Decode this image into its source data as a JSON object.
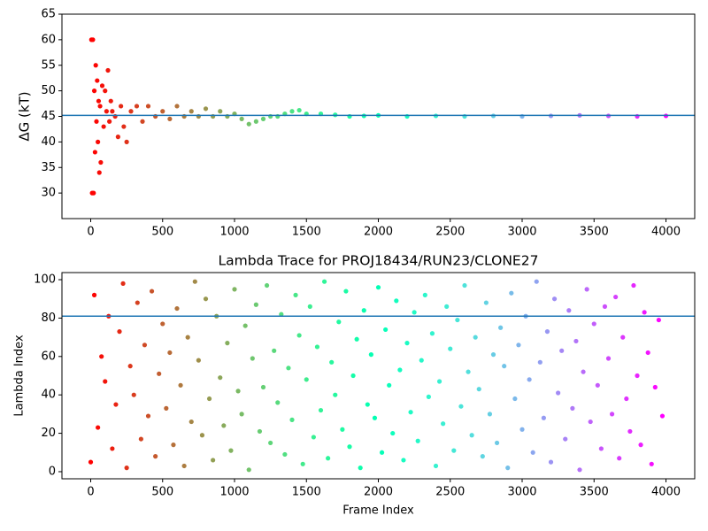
{
  "chart_data": [
    {
      "type": "scatter",
      "ylabel": "ΔG (kT)",
      "colormap": "rainbow_r",
      "hline": 45.2,
      "hline_color": "#1f77b4",
      "xlim": [
        -200,
        4200
      ],
      "ylim": [
        25,
        65
      ],
      "xticks": [
        0,
        500,
        1000,
        1500,
        2000,
        2500,
        3000,
        3500,
        4000
      ],
      "yticks": [
        30,
        35,
        40,
        45,
        50,
        55,
        60,
        65
      ],
      "x": [
        5,
        10,
        15,
        20,
        25,
        30,
        35,
        40,
        45,
        50,
        55,
        60,
        65,
        70,
        80,
        90,
        100,
        110,
        120,
        130,
        140,
        150,
        170,
        190,
        210,
        230,
        250,
        280,
        320,
        360,
        400,
        450,
        500,
        550,
        600,
        650,
        700,
        750,
        800,
        850,
        900,
        950,
        1000,
        1050,
        1100,
        1150,
        1200,
        1250,
        1300,
        1350,
        1400,
        1450,
        1500,
        1600,
        1700,
        1800,
        1900,
        2000,
        2200,
        2400,
        2600,
        2800,
        3000,
        3200,
        3400,
        3600,
        3800,
        4000
      ],
      "values": [
        60,
        30,
        60,
        30,
        50,
        38,
        55,
        44,
        52,
        40,
        48,
        34,
        47,
        36,
        51,
        43,
        50,
        46,
        54,
        44,
        48,
        46,
        45,
        41,
        47,
        43,
        40,
        46,
        47,
        44,
        47,
        45,
        46,
        44.5,
        47,
        45,
        46,
        45,
        46.5,
        45,
        46,
        45,
        45.5,
        44.5,
        43.5,
        44,
        44.5,
        45,
        45,
        45.5,
        46,
        46.2,
        45.5,
        45.5,
        45.3,
        45,
        45.1,
        45.2,
        45,
        45.1,
        45,
        45.1,
        45,
        45.1,
        45.2,
        45.1,
        45,
        45.1
      ]
    },
    {
      "type": "scatter",
      "title": "Lambda Trace for PROJ18434/RUN23/CLONE27",
      "xlabel": "Frame Index",
      "ylabel": "Lambda Index",
      "colormap": "rainbow_r",
      "hline": 81,
      "hline_color": "#1f77b4",
      "xlim": [
        -200,
        4200
      ],
      "ylim": [
        -3.7,
        103.7
      ],
      "xticks": [
        0,
        500,
        1000,
        1500,
        2000,
        2500,
        3000,
        3500,
        4000
      ],
      "yticks": [
        0,
        20,
        40,
        60,
        80,
        100
      ],
      "x": [
        0,
        25,
        50,
        75,
        100,
        125,
        150,
        175,
        200,
        225,
        250,
        275,
        300,
        325,
        350,
        375,
        400,
        425,
        450,
        475,
        500,
        525,
        550,
        575,
        600,
        625,
        650,
        675,
        700,
        725,
        750,
        775,
        800,
        825,
        850,
        875,
        900,
        925,
        950,
        975,
        1000,
        1025,
        1050,
        1075,
        1100,
        1125,
        1150,
        1175,
        1200,
        1225,
        1250,
        1275,
        1300,
        1325,
        1350,
        1375,
        1400,
        1425,
        1450,
        1475,
        1500,
        1525,
        1550,
        1575,
        1600,
        1625,
        1650,
        1675,
        1700,
        1725,
        1750,
        1775,
        1800,
        1825,
        1850,
        1875,
        1900,
        1925,
        1950,
        1975,
        2000,
        2025,
        2050,
        2075,
        2100,
        2125,
        2150,
        2175,
        2200,
        2225,
        2250,
        2275,
        2300,
        2325,
        2350,
        2375,
        2400,
        2425,
        2450,
        2475,
        2500,
        2525,
        2550,
        2575,
        2600,
        2625,
        2650,
        2675,
        2700,
        2725,
        2750,
        2775,
        2800,
        2825,
        2850,
        2875,
        2900,
        2925,
        2950,
        2975,
        3000,
        3025,
        3050,
        3075,
        3100,
        3125,
        3150,
        3175,
        3200,
        3225,
        3250,
        3275,
        3300,
        3325,
        3350,
        3375,
        3400,
        3425,
        3450,
        3475,
        3500,
        3525,
        3550,
        3575,
        3600,
        3625,
        3650,
        3675,
        3700,
        3725,
        3750,
        3775,
        3800,
        3825,
        3850,
        3875,
        3900,
        3925,
        3950,
        3975
      ],
      "values": [
        5,
        92,
        23,
        60,
        47,
        81,
        12,
        35,
        73,
        98,
        2,
        55,
        40,
        88,
        17,
        66,
        29,
        94,
        8,
        51,
        77,
        33,
        62,
        14,
        85,
        45,
        3,
        70,
        26,
        99,
        58,
        19,
        90,
        38,
        6,
        81,
        49,
        24,
        67,
        11,
        95,
        42,
        30,
        76,
        1,
        59,
        87,
        21,
        44,
        97,
        15,
        63,
        36,
        82,
        9,
        54,
        27,
        92,
        71,
        4,
        48,
        86,
        18,
        65,
        32,
        99,
        7,
        57,
        40,
        78,
        22,
        94,
        13,
        50,
        69,
        2,
        84,
        35,
        61,
        28,
        96,
        10,
        74,
        45,
        20,
        89,
        53,
        6,
        67,
        31,
        83,
        16,
        58,
        92,
        39,
        72,
        3,
        47,
        25,
        86,
        64,
        11,
        79,
        34,
        97,
        52,
        19,
        70,
        43,
        8,
        88,
        30,
        61,
        15,
        75,
        55,
        2,
        93,
        38,
        66,
        22,
        81,
        48,
        10,
        99,
        57,
        28,
        73,
        5,
        90,
        41,
        63,
        17,
        84,
        33,
        68,
        1,
        52,
        95,
        26,
        77,
        45,
        12,
        86,
        59,
        30,
        91,
        7,
        70,
        38,
        21,
        97,
        50,
        14,
        83,
        62,
        4,
        44,
        79,
        29
      ]
    }
  ]
}
